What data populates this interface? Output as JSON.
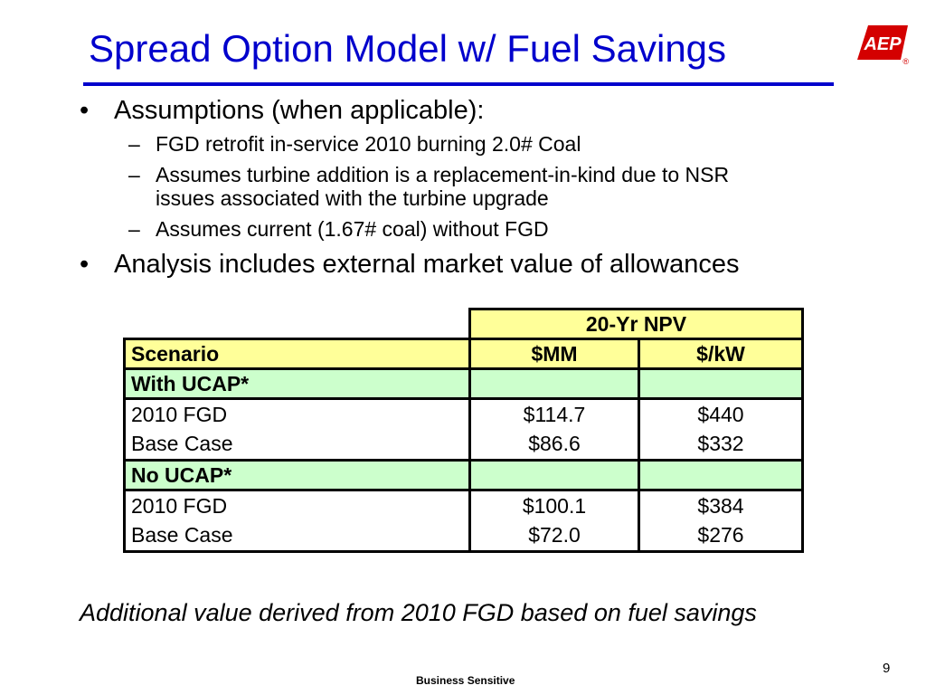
{
  "slide": {
    "title": "Spread Option Model w/ Fuel Savings",
    "logo_text": "AEP",
    "logo_mark": "®",
    "accent_color": "#0000cc",
    "logo_color": "#d40000"
  },
  "bullets": [
    {
      "marker": "•",
      "text": "Assumptions (when applicable):",
      "sub": [
        {
          "marker": "–",
          "lines": [
            "FGD retrofit in-service 2010 burning 2.0# Coal"
          ]
        },
        {
          "marker": "–",
          "lines": [
            " Assumes turbine addition is a replacement-in-kind due to NSR",
            "issues associated with the turbine upgrade"
          ]
        },
        {
          "marker": "–",
          "lines": [
            "Assumes current (1.67# coal) without FGD"
          ]
        }
      ]
    },
    {
      "marker": "•",
      "text": "Analysis includes external market value of allowances",
      "sub": []
    }
  ],
  "table": {
    "group_header": "20-Yr NPV",
    "columns": [
      "Scenario",
      "$MM",
      "$/kW"
    ],
    "sections": [
      {
        "label": "With UCAP*",
        "rows": [
          [
            "2010 FGD",
            "$114.7",
            "$440"
          ],
          [
            "Base Case",
            "$86.6",
            "$332"
          ]
        ]
      },
      {
        "label": "No UCAP*",
        "rows": [
          [
            "2010 FGD",
            "$100.1",
            "$384"
          ],
          [
            "Base Case",
            "$72.0",
            "$276"
          ]
        ]
      }
    ],
    "header_color": "#ffff99",
    "section_color": "#ccffcc"
  },
  "note": "Additional value derived from 2010 FGD based on fuel savings",
  "page_number": "9",
  "footer": "Business Sensitive"
}
